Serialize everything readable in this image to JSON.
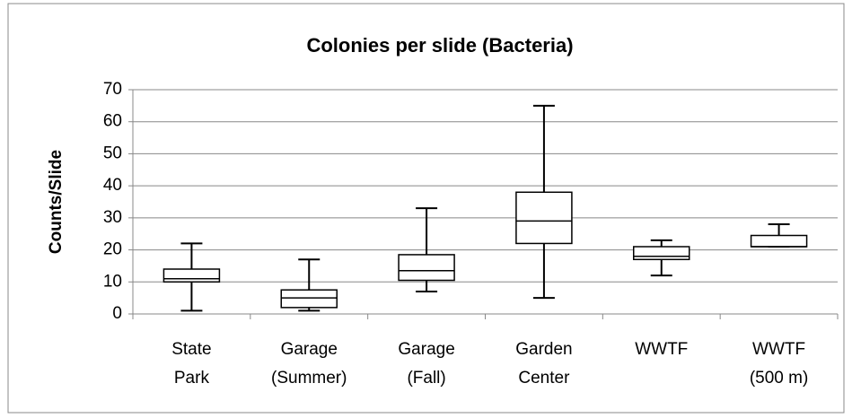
{
  "chart_data": {
    "type": "box",
    "title": "Colonies per slide (Bacteria)",
    "y_label": "Counts/Slide",
    "categories": [
      [
        "State",
        "Park"
      ],
      [
        "Garage",
        "(Summer)"
      ],
      [
        "Garage",
        "(Fall)"
      ],
      [
        "Garden",
        "Center"
      ],
      [
        "WWTF"
      ],
      [
        "WWTF",
        "(500 m)"
      ]
    ],
    "boxes": [
      {
        "min": 1,
        "q1": 10,
        "median": 11,
        "q3": 14,
        "max": 22
      },
      {
        "min": 1,
        "q1": 2,
        "median": 5,
        "q3": 7.5,
        "max": 17
      },
      {
        "min": 7,
        "q1": 10.5,
        "median": 13.5,
        "q3": 18.5,
        "max": 33
      },
      {
        "min": 5,
        "q1": 22,
        "median": 29,
        "q3": 38,
        "max": 65
      },
      {
        "min": 12,
        "q1": 17,
        "median": 18,
        "q3": 21,
        "max": 23
      },
      {
        "min": 21,
        "q1": 21,
        "median": 21,
        "q3": 24.5,
        "max": 28
      }
    ],
    "color": "#000000",
    "ylim": [
      0,
      70
    ],
    "yticks": [
      0,
      10,
      20,
      30,
      40,
      50,
      60,
      70
    ],
    "grid": true
  }
}
